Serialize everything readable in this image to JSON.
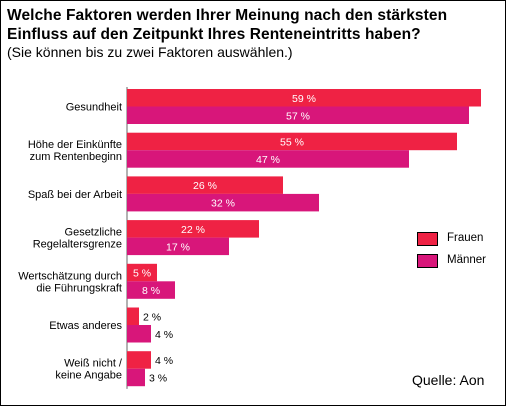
{
  "title": "Welche Faktoren werden Ihrer Meinung nach den stärksten Einfluss auf den Zeitpunkt Ihres Renteneintritts haben?",
  "subtitle": "(Sie können bis zu zwei Faktoren auswählen.)",
  "source": "Quelle: Aon",
  "colors": {
    "frauen": "#ef2244",
    "maenner": "#d8167a"
  },
  "chart_data": {
    "type": "bar",
    "orientation": "horizontal",
    "categories": [
      "Gesundheit",
      "Höhe der Einkünfte\nzum Rentenbeginn",
      "Spaß bei der Arbeit",
      "Gesetzliche\nRegelaltersgrenze",
      "Wertschätzung durch\ndie Führungskraft",
      "Etwas anderes",
      "Weiß nicht /\nkeine Angabe"
    ],
    "series": [
      {
        "name": "Frauen",
        "values": [
          59,
          55,
          26,
          22,
          5,
          2,
          4
        ]
      },
      {
        "name": "Männer",
        "values": [
          57,
          47,
          32,
          17,
          8,
          4,
          3
        ]
      }
    ],
    "value_suffix": " %",
    "xlim": [
      0,
      60
    ],
    "grid": false,
    "legend_position": "right"
  }
}
